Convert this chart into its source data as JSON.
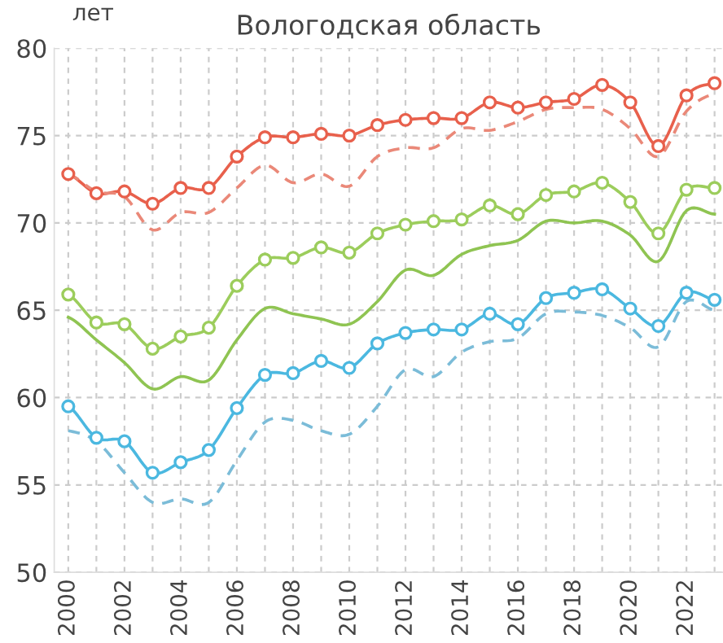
{
  "chart_data": {
    "type": "line",
    "title": "Вологодская область",
    "ylabel": "лет",
    "x": [
      2000,
      2001,
      2002,
      2003,
      2004,
      2005,
      2006,
      2007,
      2008,
      2009,
      2010,
      2011,
      2012,
      2013,
      2014,
      2015,
      2016,
      2017,
      2018,
      2019,
      2020,
      2021,
      2022,
      2023
    ],
    "xlim": [
      1999.5,
      2023.3
    ],
    "ylim": [
      50,
      80
    ],
    "xticks": [
      2000,
      {
        "value": 2001,
        "label": null
      },
      2002,
      {
        "value": 2003,
        "label": null
      },
      2004,
      {
        "value": 2005,
        "label": null
      },
      2006,
      {
        "value": 2007,
        "label": null
      },
      2008,
      {
        "value": 2009,
        "label": null
      },
      2010,
      {
        "value": 2011,
        "label": null
      },
      2012,
      {
        "value": 2013,
        "label": null
      },
      2014,
      {
        "value": 2015,
        "label": null
      },
      2016,
      {
        "value": 2017,
        "label": null
      },
      2018,
      {
        "value": 2019,
        "label": null
      },
      2020,
      {
        "value": 2021,
        "label": null
      },
      2022,
      {
        "value": 2023,
        "label": null
      }
    ],
    "yticks": [
      50,
      55,
      60,
      65,
      70,
      75,
      80
    ],
    "grid": true,
    "legend": false,
    "series": [
      {
        "color": "#e8604c",
        "marker": "circle",
        "line_style": "solid",
        "values": [
          72.8,
          71.7,
          71.8,
          71.1,
          72.0,
          72.0,
          73.8,
          74.9,
          74.9,
          75.1,
          75.0,
          75.6,
          75.9,
          76.0,
          76.0,
          76.9,
          76.6,
          76.9,
          77.1,
          77.9,
          76.9,
          74.4,
          77.3,
          78.0
        ]
      },
      {
        "color": "#ea8878",
        "marker": "none",
        "line_style": "dashed",
        "values": [
          72.8,
          71.8,
          71.5,
          69.6,
          70.6,
          70.6,
          72.0,
          73.3,
          72.3,
          72.8,
          72.1,
          73.8,
          74.3,
          74.3,
          75.4,
          75.3,
          75.8,
          76.5,
          76.6,
          76.5,
          75.4,
          73.8,
          76.4,
          77.4
        ]
      },
      {
        "color": "#9ccd5c",
        "marker": "circle",
        "line_style": "solid",
        "values": [
          65.9,
          64.3,
          64.2,
          62.8,
          63.5,
          64.0,
          66.4,
          67.9,
          68.0,
          68.6,
          68.3,
          69.4,
          69.9,
          70.1,
          70.2,
          71.0,
          70.5,
          71.6,
          71.8,
          72.3,
          71.2,
          69.4,
          71.9,
          72.0
        ]
      },
      {
        "color": "#8fc452",
        "marker": "none",
        "line_style": "solid",
        "values": [
          64.6,
          63.3,
          62.0,
          60.5,
          61.2,
          61.0,
          63.3,
          65.1,
          64.8,
          64.5,
          64.2,
          65.5,
          67.3,
          67.0,
          68.2,
          68.7,
          69.0,
          70.1,
          70.0,
          70.1,
          69.3,
          67.8,
          70.7,
          70.5
        ]
      },
      {
        "color": "#4bb8e0",
        "marker": "circle",
        "line_style": "solid",
        "values": [
          59.5,
          57.7,
          57.5,
          55.7,
          56.3,
          57.0,
          59.4,
          61.3,
          61.4,
          62.1,
          61.7,
          63.1,
          63.7,
          63.9,
          63.9,
          64.8,
          64.2,
          65.7,
          66.0,
          66.2,
          65.1,
          64.1,
          66.0,
          65.6
        ]
      },
      {
        "color": "#7bbcd8",
        "marker": "none",
        "line_style": "dashed",
        "values": [
          58.1,
          57.5,
          55.7,
          54.0,
          54.2,
          54.0,
          56.4,
          58.6,
          58.7,
          58.1,
          57.9,
          59.5,
          61.6,
          61.2,
          62.6,
          63.2,
          63.4,
          64.8,
          64.9,
          64.7,
          64.0,
          62.9,
          65.5,
          65.0
        ]
      }
    ]
  }
}
